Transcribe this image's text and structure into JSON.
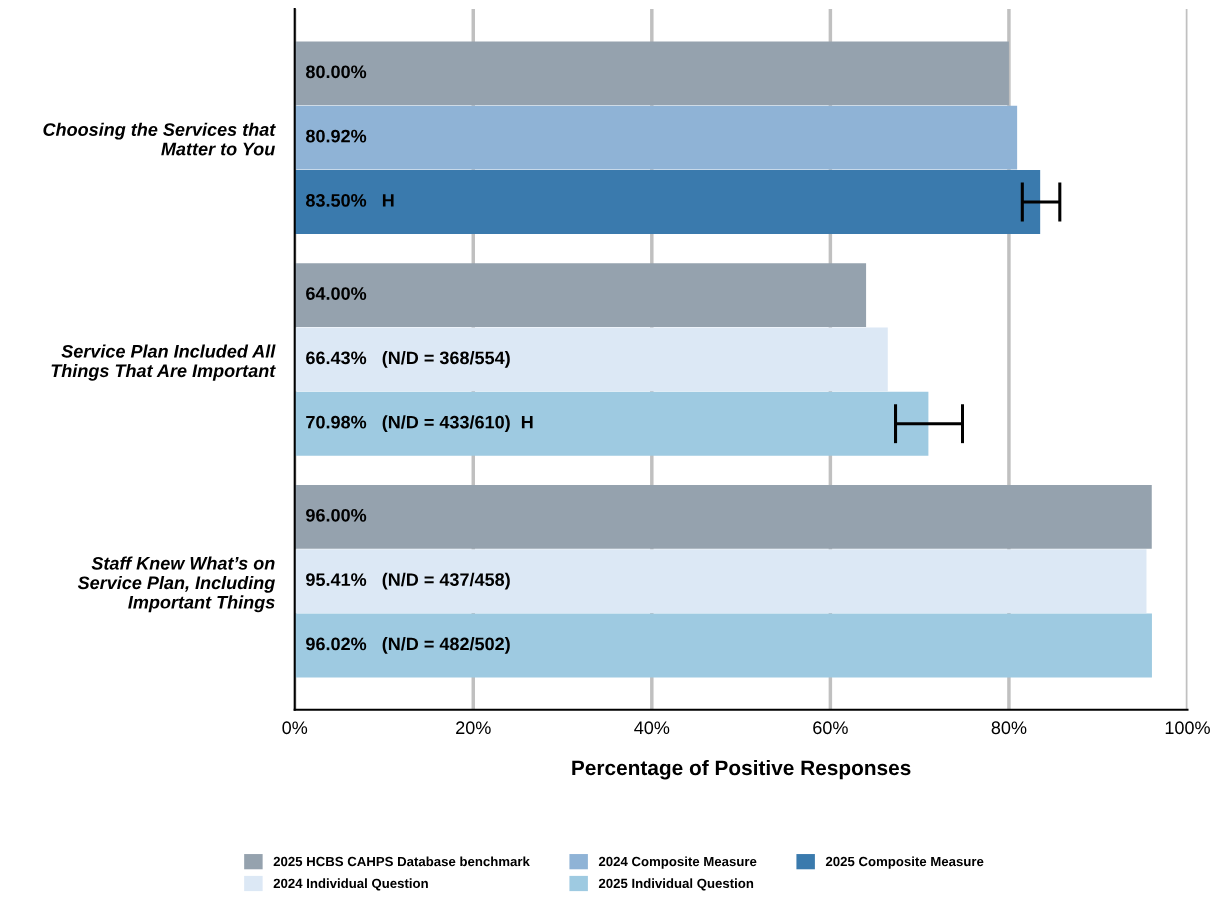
{
  "chart_data": {
    "type": "bar",
    "orientation": "horizontal",
    "categories": [
      "Choosing the Services that\nMatter to You",
      "Service Plan Included All\nThings That Are Important",
      "Staff Knew What’s on\nService Plan, Including\nImportant Things"
    ],
    "series": [
      {
        "name": "2025 HCBS CAHPS Database benchmark",
        "color": "#95a2ae",
        "values": [
          80.0,
          64.0,
          96.0
        ],
        "value_labels": [
          "80.00%",
          "64.00%",
          "96.00%"
        ]
      },
      {
        "name": "2024 Composite Measure",
        "color": "#8fb3d6",
        "values": [
          80.92,
          null,
          null
        ],
        "value_labels": [
          "80.92%",
          null,
          null
        ]
      },
      {
        "name": "2025 Composite Measure",
        "color": "#3a7aad",
        "values": [
          83.5,
          null,
          null
        ],
        "value_labels": [
          "83.50%   H",
          null,
          null
        ],
        "errors": [
          [
            81.5,
            85.7
          ],
          null,
          null
        ]
      },
      {
        "name": "2024 Individual Question",
        "color": "#dce8f5",
        "values": [
          null,
          66.43,
          95.41
        ],
        "value_labels": [
          null,
          "66.43%   (N/D = 368/554)",
          "95.41%   (N/D = 437/458)"
        ]
      },
      {
        "name": "2025 Individual Question",
        "color": "#9ecae1",
        "values": [
          null,
          70.98,
          96.02
        ],
        "value_labels": [
          null,
          "70.98%   (N/D = 433/610)  H",
          "96.02%   (N/D = 482/502)"
        ],
        "errors": [
          null,
          [
            67.3,
            74.8
          ],
          null
        ]
      }
    ],
    "xlabel": "Percentage of Positive Responses",
    "xlim": [
      0,
      100
    ],
    "xticks": [
      {
        "value": 0,
        "label": "0%"
      },
      {
        "value": 20,
        "label": "20%"
      },
      {
        "value": 40,
        "label": "40%"
      },
      {
        "value": 60,
        "label": "60%"
      },
      {
        "value": 80,
        "label": "80%"
      },
      {
        "value": 100,
        "label": "100%"
      }
    ],
    "grid": "x",
    "legend": "bottom"
  }
}
